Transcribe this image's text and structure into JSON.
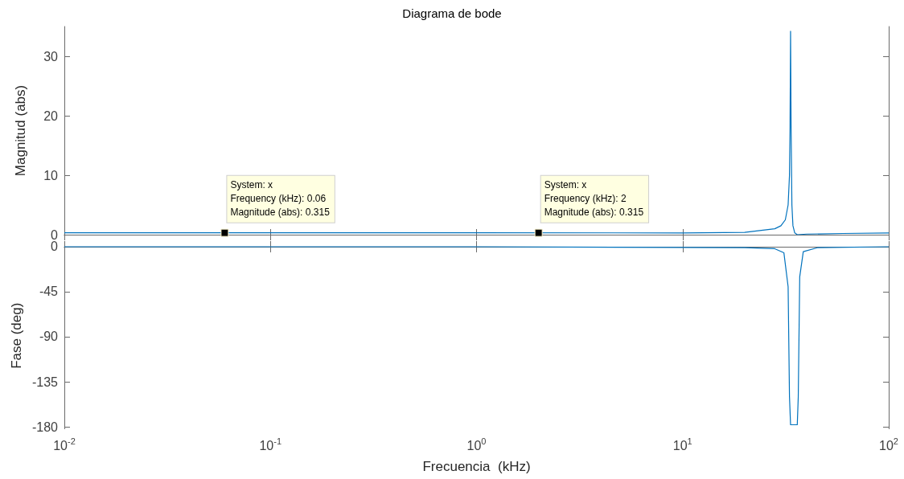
{
  "chart_data": [
    {
      "type": "line",
      "title": "Diagrama de bode",
      "ylabel": "Magnitud (abs)",
      "x": [
        0.01,
        0.1,
        1,
        10,
        20,
        28,
        30,
        31.5,
        32.5,
        33,
        33.2,
        33.4,
        33.6,
        33.9,
        34.3,
        35,
        36,
        40,
        60,
        100
      ],
      "series": [
        {
          "color": "#0072bd",
          "values": [
            0.315,
            0.315,
            0.315,
            0.3,
            0.4,
            1,
            1.5,
            2.5,
            5,
            10,
            18,
            34.2,
            18,
            5,
            1.5,
            0.3,
            0,
            0.1,
            0.2,
            0.3
          ]
        }
      ],
      "xlim": [
        0.01,
        100
      ],
      "xticks": [
        0.01,
        0.1,
        1,
        10,
        100
      ],
      "ylim": [
        0,
        35
      ],
      "yticks": [
        0,
        10,
        20,
        30
      ],
      "log": "x",
      "tick_labels": "y",
      "annotations": [
        {
          "text": "System: x\nFrequency (kHz): 0.06\nMagnitude (abs): 0.315",
          "x": 0.06,
          "y": 0.315
        },
        {
          "text": "System: x\nFrequency (kHz): 2\nMagnitude (abs): 0.315",
          "x": 2,
          "y": 0.315
        }
      ]
    },
    {
      "type": "line",
      "xlabel": "Frecuencia  (kHz)",
      "ylabel": "Fase (deg)",
      "x": [
        0.01,
        1,
        20,
        28,
        31,
        32.5,
        33,
        33.4,
        36,
        36.4,
        37,
        38.5,
        45,
        100
      ],
      "series": [
        {
          "color": "#0072bd",
          "values": [
            0,
            0,
            -1,
            -2,
            -6,
            -40,
            -150,
            -178,
            -178,
            -150,
            -30,
            -5,
            -1,
            0
          ]
        }
      ],
      "xlim": [
        0.01,
        100
      ],
      "xticks": [
        {
          "value": 0.01,
          "label": "10$^{-2}$"
        },
        {
          "value": 0.1,
          "label": "10$^{-1}$"
        },
        {
          "value": 1,
          "label": "10$^{0}$"
        },
        {
          "value": 10,
          "label": "10$^{1}$"
        },
        {
          "value": 100,
          "label": "10$^{2}$"
        }
      ],
      "ylim": [
        -182,
        4
      ],
      "yticks": [
        -180,
        -135,
        -90,
        -45,
        0
      ],
      "log": "x"
    }
  ]
}
